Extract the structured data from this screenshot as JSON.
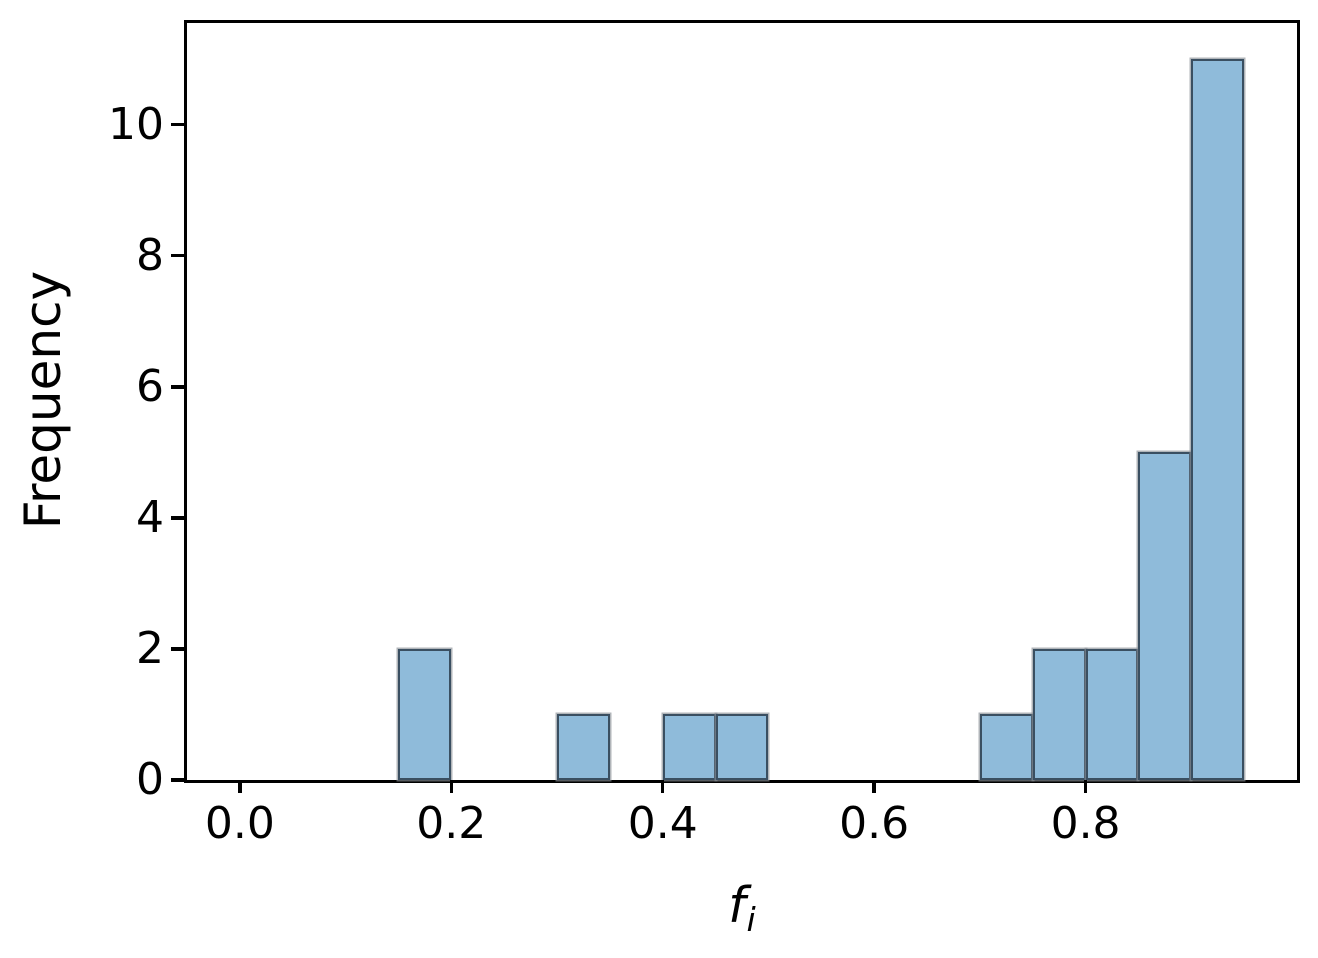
{
  "chart_data": {
    "type": "bar",
    "subtype": "histogram",
    "title": "",
    "xlabel": {
      "base": "f",
      "subscript": "i"
    },
    "ylabel": "Frequency",
    "bins": [
      {
        "x0": 0.15,
        "x1": 0.2,
        "count": 2
      },
      {
        "x0": 0.3,
        "x1": 0.35,
        "count": 1
      },
      {
        "x0": 0.4,
        "x1": 0.45,
        "count": 1
      },
      {
        "x0": 0.45,
        "x1": 0.5,
        "count": 1
      },
      {
        "x0": 0.7,
        "x1": 0.75,
        "count": 1
      },
      {
        "x0": 0.75,
        "x1": 0.8,
        "count": 2
      },
      {
        "x0": 0.8,
        "x1": 0.85,
        "count": 2
      },
      {
        "x0": 0.85,
        "x1": 0.9,
        "count": 5
      },
      {
        "x0": 0.9,
        "x1": 0.95,
        "count": 11
      }
    ],
    "bin_width": 0.05,
    "xticks": [
      {
        "value": 0.0,
        "label": "0.0"
      },
      {
        "value": 0.2,
        "label": "0.2"
      },
      {
        "value": 0.4,
        "label": "0.4"
      },
      {
        "value": 0.6,
        "label": "0.6"
      },
      {
        "value": 0.8,
        "label": "0.8"
      }
    ],
    "yticks": [
      {
        "value": 0,
        "label": "0"
      },
      {
        "value": 2,
        "label": "2"
      },
      {
        "value": 4,
        "label": "4"
      },
      {
        "value": 6,
        "label": "6"
      },
      {
        "value": 8,
        "label": "8"
      },
      {
        "value": 10,
        "label": "10"
      }
    ],
    "xlim": [
      -0.05,
      1.0
    ],
    "ylim": [
      0,
      11.55
    ],
    "grid": false,
    "legend": null,
    "colors": {
      "bar_fill": "#8fbbda",
      "bar_edge": "#3a4f61",
      "bar_edge_halo": "#878e93",
      "axis": "#000000",
      "text": "#000000",
      "background": "#ffffff"
    }
  }
}
